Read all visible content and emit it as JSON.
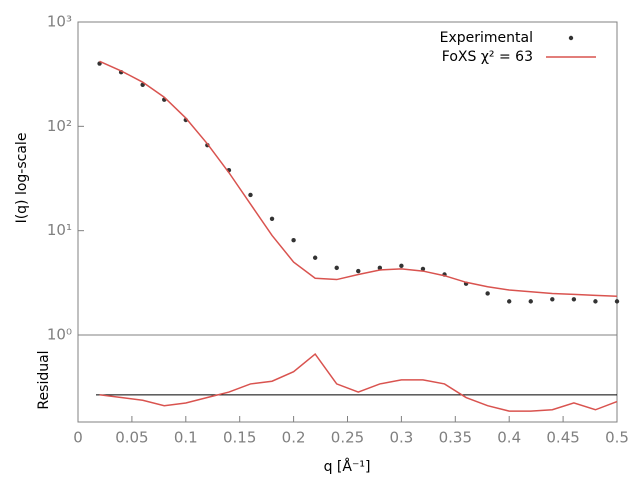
{
  "chart_data": [
    {
      "type": "line",
      "ylabel": "I(q) log-scale",
      "log_y": true,
      "legend": "upper right",
      "xlim": [
        0,
        0.5
      ],
      "ylim": [
        1,
        1000
      ],
      "yticks": [
        {
          "value": 1,
          "label": "10⁰"
        },
        {
          "value": 10,
          "label": "10¹"
        },
        {
          "value": 100,
          "label": "10²"
        },
        {
          "value": 1000,
          "label": "10³"
        }
      ],
      "x": [
        0.02,
        0.04,
        0.06,
        0.08,
        0.1,
        0.12,
        0.14,
        0.16,
        0.18,
        0.2,
        0.22,
        0.24,
        0.26,
        0.28,
        0.3,
        0.32,
        0.34,
        0.36,
        0.38,
        0.4,
        0.42,
        0.44,
        0.46,
        0.48,
        0.5
      ],
      "series": [
        {
          "name": "Experimental",
          "color": "#333333",
          "mode": "points",
          "values": [
            400,
            330,
            250,
            180,
            115,
            66,
            38,
            22,
            13,
            8.1,
            5.5,
            4.4,
            4.1,
            4.4,
            4.6,
            4.3,
            3.8,
            3.1,
            2.5,
            2.1,
            2.1,
            2.2,
            2.2,
            2.1,
            2.1
          ]
        },
        {
          "name": "FoXS χ² = 63",
          "color": "#d9534f",
          "mode": "line",
          "values": [
            420,
            340,
            265,
            190,
            120,
            68,
            36,
            18,
            9,
            5,
            3.5,
            3.4,
            3.8,
            4.2,
            4.3,
            4.1,
            3.7,
            3.2,
            2.9,
            2.7,
            2.6,
            2.5,
            2.45,
            2.4,
            2.35
          ]
        }
      ]
    },
    {
      "type": "line",
      "ylabel": "Residual",
      "xlabel": "q [Å⁻¹]",
      "xlim": [
        0,
        0.5
      ],
      "xticks": [
        0,
        0.05,
        0.1,
        0.15,
        0.2,
        0.25,
        0.3,
        0.35,
        0.4,
        0.45,
        0.5
      ],
      "ylim": [
        -1,
        2.2
      ],
      "reference_line": 0,
      "x": [
        0.02,
        0.04,
        0.06,
        0.08,
        0.1,
        0.12,
        0.14,
        0.16,
        0.18,
        0.2,
        0.22,
        0.24,
        0.26,
        0.28,
        0.3,
        0.32,
        0.34,
        0.36,
        0.38,
        0.4,
        0.42,
        0.44,
        0.46,
        0.48,
        0.5
      ],
      "series": [
        {
          "color": "#d9534f",
          "mode": "line",
          "values": [
            0,
            -0.1,
            -0.2,
            -0.4,
            -0.3,
            -0.1,
            0.1,
            0.4,
            0.5,
            0.85,
            1.5,
            0.4,
            0.1,
            0.4,
            0.55,
            0.55,
            0.4,
            -0.1,
            -0.4,
            -0.6,
            -0.6,
            -0.55,
            -0.3,
            -0.55,
            -0.25
          ]
        }
      ]
    }
  ]
}
